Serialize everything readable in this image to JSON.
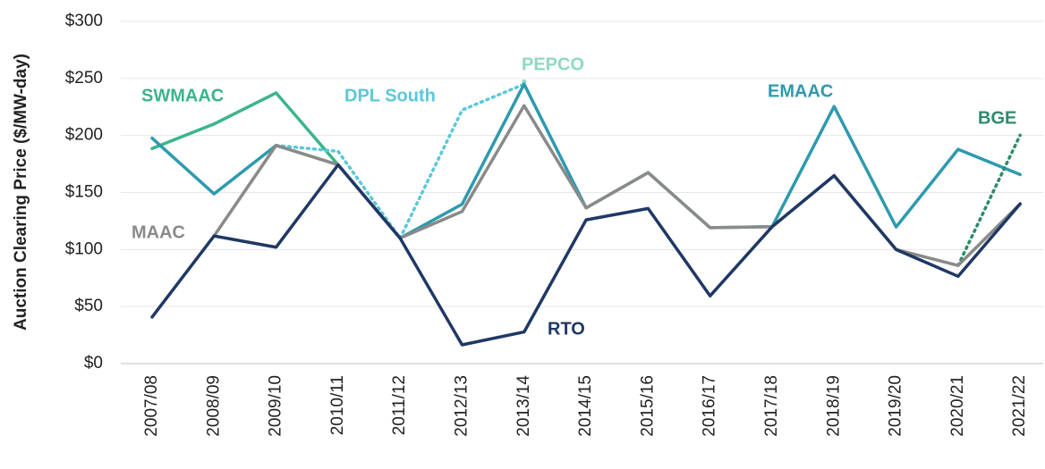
{
  "chart_data": {
    "type": "line",
    "y_label": "Auction Clearing Price ($/MW-day)",
    "categories": [
      "2007/08",
      "2008/09",
      "2009/10",
      "2010/11",
      "2011/12",
      "2012/13",
      "2013/14",
      "2014/15",
      "2015/16",
      "2016/17",
      "2017/18",
      "2018/19",
      "2019/20",
      "2020/21",
      "2021/22"
    ],
    "ylim": [
      0,
      300
    ],
    "yticks": [
      {
        "value": 0,
        "label": "$0"
      },
      {
        "value": 50,
        "label": "$50"
      },
      {
        "value": 100,
        "label": "$100"
      },
      {
        "value": 150,
        "label": "$150"
      },
      {
        "value": 200,
        "label": "$200"
      },
      {
        "value": 250,
        "label": "$250"
      },
      {
        "value": 300,
        "label": "$300"
      }
    ],
    "grid": true,
    "series": [
      {
        "name": "SWMAAC",
        "color": "#3bb58a",
        "style": "solid",
        "values": [
          188.54,
          210.11,
          237.33,
          174.29,
          null,
          null,
          null,
          null,
          null,
          null,
          null,
          null,
          null,
          null,
          null
        ]
      },
      {
        "name": "DPL South",
        "color": "#5bc8d8",
        "style": "dotted",
        "values": [
          null,
          null,
          191.32,
          186.12,
          110,
          222.3,
          245,
          null,
          null,
          null,
          null,
          null,
          null,
          null,
          null
        ]
      },
      {
        "name": "PEPCO",
        "color": "#8fd8c0",
        "style": "dotted",
        "values": [
          null,
          null,
          null,
          null,
          null,
          null,
          247.14,
          null,
          null,
          null,
          null,
          null,
          null,
          null,
          null
        ]
      },
      {
        "name": "EMAAC",
        "color": "#2e9aae",
        "style": "solid",
        "values": [
          197.67,
          148.8,
          191.32,
          174.29,
          110,
          139.73,
          245,
          136.5,
          167.46,
          119.13,
          120,
          225.42,
          119.77,
          187.87,
          165.73
        ]
      },
      {
        "name": "BGE",
        "color": "#2e8b6a",
        "style": "dotted",
        "values": [
          null,
          null,
          null,
          null,
          null,
          null,
          null,
          null,
          null,
          null,
          null,
          null,
          null,
          86.04,
          200.3
        ]
      },
      {
        "name": "MAAC",
        "color": "#8a8a8a",
        "style": "solid",
        "values": [
          null,
          111.92,
          191.32,
          174.29,
          110,
          133.37,
          226.15,
          136.5,
          167.46,
          119.13,
          120,
          164.77,
          100,
          86.04,
          140
        ]
      },
      {
        "name": "RTO",
        "color": "#1f3864",
        "style": "solid",
        "values": [
          40.8,
          111.92,
          102.04,
          174.29,
          110,
          16.46,
          27.73,
          125.99,
          136,
          59.37,
          120,
          164.77,
          100,
          76.53,
          140
        ]
      }
    ]
  }
}
